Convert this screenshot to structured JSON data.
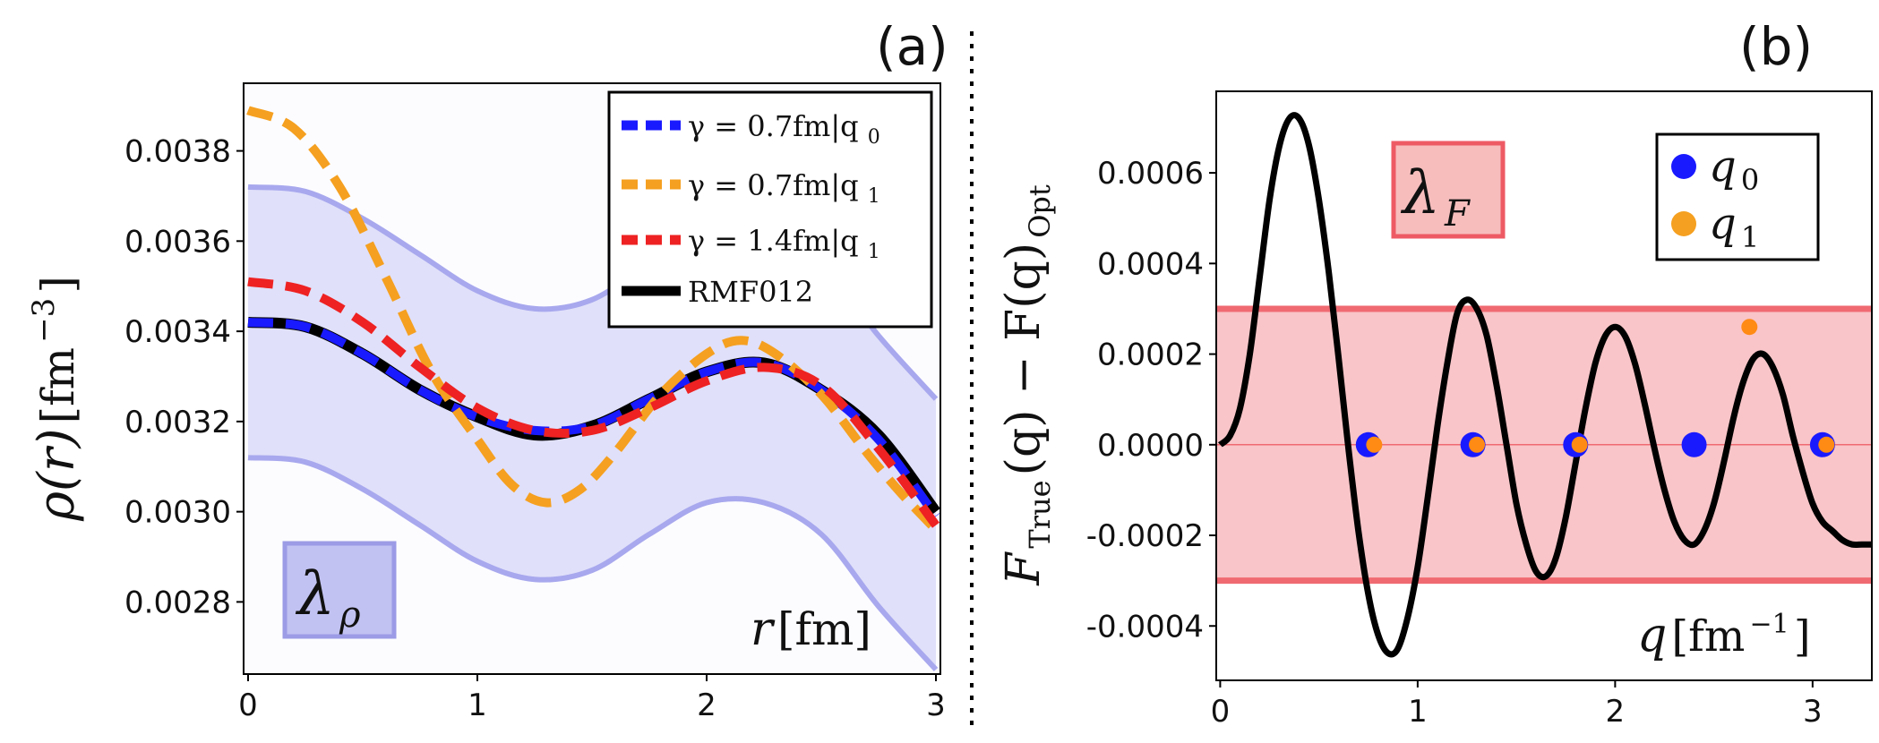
{
  "colors": {
    "blue": "#1a1aff",
    "orange": "#f5a020",
    "red": "#ee2222",
    "black": "#000000",
    "band_blue": "#c8c8f6",
    "band_blue_edge": "#a8a8ee",
    "band_red": "#f9c5c8",
    "band_red_edge": "#f06a72",
    "box_blue_fill": "#c2c2f2",
    "box_blue_edge": "#9b9be6",
    "box_red_fill": "#f7bdbd",
    "box_red_edge": "#ee5a64",
    "marker_edge_blue": "#1a1aff",
    "marker_orange": "#ff8a14"
  },
  "chart_data": [
    {
      "panel": "(a)",
      "type": "line",
      "xlabel": "r [fm]",
      "xlabel_parts": {
        "var": "r",
        "unit": "[fm]"
      },
      "ylabel": "ρ(r) [fm⁻³]",
      "ylabel_parts": {
        "var": "ρ(r)",
        "unit": "[fm",
        "exp": "−3",
        "close": "]"
      },
      "xlim": [
        0,
        3
      ],
      "ylim": [
        0.00264,
        0.00395
      ],
      "xticks": [
        0,
        1,
        2,
        3
      ],
      "xtick_labels": [
        "0",
        "1",
        "2",
        "3"
      ],
      "yticks": [
        0.0028,
        0.003,
        0.0032,
        0.0034,
        0.0036,
        0.0038
      ],
      "ytick_labels": [
        "0.0028",
        "0.0030",
        "0.0032",
        "0.0034",
        "0.0036",
        "0.0038"
      ],
      "band_label": "λ_ρ",
      "band_label_parts": {
        "base": "λ",
        "sub": "ρ"
      },
      "band": {
        "x": [
          0,
          0.25,
          0.5,
          0.75,
          1.0,
          1.25,
          1.5,
          1.75,
          2.0,
          2.25,
          2.5,
          2.75,
          3.0
        ],
        "upper": [
          0.00372,
          0.00371,
          0.00365,
          0.00357,
          0.00349,
          0.00345,
          0.00347,
          0.00355,
          0.00362,
          0.00362,
          0.00355,
          0.00339,
          0.00325
        ],
        "lower": [
          0.00312,
          0.00311,
          0.00305,
          0.00297,
          0.00289,
          0.00285,
          0.00287,
          0.00295,
          0.00302,
          0.00302,
          0.00295,
          0.00279,
          0.00265
        ]
      },
      "series": [
        {
          "name": "RMF012",
          "legend": "RMF012",
          "style": "solid",
          "color": "#000000",
          "x": [
            0,
            0.25,
            0.5,
            0.75,
            1.0,
            1.25,
            1.5,
            1.75,
            2.0,
            2.25,
            2.5,
            2.75,
            3.0
          ],
          "y": [
            0.00342,
            0.00341,
            0.00335,
            0.00327,
            0.00321,
            0.00317,
            0.00319,
            0.00325,
            0.00331,
            0.00333,
            0.00327,
            0.00317,
            0.003
          ]
        },
        {
          "name": "γ = 0.7fm|q0",
          "legend": {
            "lhs": "γ = 0.7fm|q",
            "sub": "0"
          },
          "style": "dashed",
          "color": "#1a1aff",
          "x": [
            0,
            0.25,
            0.5,
            0.75,
            1.0,
            1.25,
            1.5,
            1.75,
            2.0,
            2.25,
            2.5,
            2.75,
            3.0
          ],
          "y": [
            0.00342,
            0.00341,
            0.00335,
            0.00327,
            0.00321,
            0.00318,
            0.00319,
            0.00325,
            0.00331,
            0.00333,
            0.00327,
            0.00316,
            0.00299
          ]
        },
        {
          "name": "γ = 0.7fm|q1",
          "legend": {
            "lhs": "γ = 0.7fm|q",
            "sub": "1"
          },
          "style": "dashed",
          "color": "#f5a020",
          "x": [
            0,
            0.2,
            0.4,
            0.6,
            0.8,
            1.0,
            1.15,
            1.3,
            1.45,
            1.6,
            1.8,
            2.0,
            2.15,
            2.3,
            2.5,
            2.7,
            2.85,
            3.0
          ],
          "y": [
            0.00389,
            0.00385,
            0.00372,
            0.00352,
            0.00331,
            0.00316,
            0.00306,
            0.00302,
            0.00305,
            0.00313,
            0.00326,
            0.00335,
            0.00338,
            0.00335,
            0.00326,
            0.00313,
            0.00304,
            0.00296
          ]
        },
        {
          "name": "γ = 1.4fm|q1",
          "legend": {
            "lhs": "γ = 1.4fm|q",
            "sub": "1"
          },
          "style": "dashed",
          "color": "#ee2222",
          "x": [
            0,
            0.25,
            0.5,
            0.75,
            1.0,
            1.25,
            1.5,
            1.75,
            2.0,
            2.25,
            2.5,
            2.75,
            3.0
          ],
          "y": [
            0.00351,
            0.00349,
            0.00342,
            0.00332,
            0.00323,
            0.00318,
            0.00318,
            0.00323,
            0.00329,
            0.00332,
            0.00328,
            0.00314,
            0.00297
          ]
        }
      ],
      "legend_position": "top-right"
    },
    {
      "panel": "(b)",
      "type": "line",
      "xlabel": "q [fm⁻¹]",
      "xlabel_parts": {
        "var": "q",
        "unit": "[fm",
        "exp": "−1",
        "close": "]"
      },
      "ylabel": "F_True(q) − F(q)_Opt",
      "ylabel_parts": {
        "a": "F",
        "a_sub": "True",
        "b": "(q) − F(q)",
        "b_sub": "Opt"
      },
      "xlim": [
        -0.02,
        3.3
      ],
      "ylim": [
        -0.00052,
        0.00078
      ],
      "xticks": [
        0,
        1,
        2,
        3
      ],
      "xtick_labels": [
        "0",
        "1",
        "2",
        "3"
      ],
      "yticks": [
        -0.0004,
        -0.0002,
        0.0,
        0.0002,
        0.0004,
        0.0006
      ],
      "ytick_labels": [
        "-0.0004",
        "-0.0002",
        "0.0000",
        "0.0002",
        "0.0004",
        "0.0006"
      ],
      "band_label": "λ_F",
      "band_label_parts": {
        "base": "λ",
        "sub": "F"
      },
      "band": {
        "lower": -0.0003,
        "upper": 0.0003
      },
      "series": [
        {
          "name": "F_True(q) − F(q)_Opt",
          "style": "solid",
          "color": "#000000",
          "x": [
            0,
            0.05,
            0.1,
            0.15,
            0.2,
            0.25,
            0.3,
            0.35,
            0.4,
            0.45,
            0.5,
            0.55,
            0.6,
            0.65,
            0.7,
            0.75,
            0.8,
            0.85,
            0.9,
            0.95,
            1.0,
            1.05,
            1.1,
            1.15,
            1.2,
            1.25,
            1.3,
            1.35,
            1.4,
            1.45,
            1.5,
            1.55,
            1.6,
            1.65,
            1.7,
            1.75,
            1.8,
            1.85,
            1.9,
            1.95,
            2.0,
            2.05,
            2.1,
            2.15,
            2.2,
            2.25,
            2.3,
            2.35,
            2.4,
            2.45,
            2.5,
            2.55,
            2.6,
            2.65,
            2.7,
            2.75,
            2.8,
            2.85,
            2.9,
            2.95,
            3.0,
            3.05,
            3.1,
            3.15,
            3.2,
            3.25,
            3.3
          ],
          "y": [
            0.0,
            2e-05,
            8e-05,
            0.0002,
            0.00037,
            0.00054,
            0.00066,
            0.00072,
            0.00072,
            0.00066,
            0.00054,
            0.00038,
            0.00019,
            -1e-05,
            -0.00019,
            -0.00033,
            -0.00042,
            -0.00046,
            -0.00045,
            -0.00038,
            -0.00027,
            -0.00012,
            4e-05,
            0.00018,
            0.00029,
            0.00032,
            0.0003,
            0.00024,
            0.00013,
            0.0,
            -0.00013,
            -0.00022,
            -0.00028,
            -0.00029,
            -0.00025,
            -0.00016,
            -4e-05,
            8e-05,
            0.00018,
            0.00024,
            0.00026,
            0.00024,
            0.00018,
            9e-05,
            -1e-05,
            -0.0001,
            -0.00017,
            -0.00021,
            -0.00022,
            -0.00019,
            -0.00013,
            -4e-05,
            6e-05,
            0.00014,
            0.00019,
            0.0002,
            0.00017,
            0.00011,
            2e-05,
            -6e-05,
            -0.00013,
            -0.00017,
            -0.00019,
            -0.00021,
            -0.00022,
            -0.00022,
            -0.00022
          ]
        }
      ],
      "markers": [
        {
          "set": "q0",
          "x": [
            0.75,
            1.28,
            1.8,
            2.4,
            3.05
          ],
          "y": [
            0.0,
            0.0,
            0.0,
            0.0,
            0.0
          ]
        },
        {
          "set": "q1",
          "x": [
            0.78,
            1.3,
            1.82,
            2.68,
            3.07
          ],
          "y": [
            0.0,
            0.0,
            0.0,
            0.00026,
            0.0
          ]
        }
      ],
      "legend": [
        {
          "label": "q",
          "sub": "0",
          "color": "#1a1aff"
        },
        {
          "label": "q",
          "sub": "1",
          "color": "#f5a020"
        }
      ],
      "legend_position": "top-right"
    }
  ]
}
